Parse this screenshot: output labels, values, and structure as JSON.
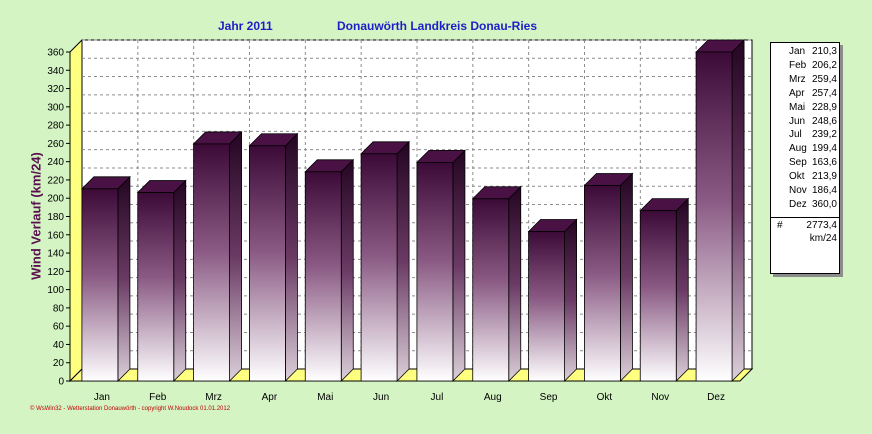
{
  "header": {
    "year_label": "Jahr  2011",
    "location": "Donauwörth Landkreis Donau-Ries"
  },
  "footer": {
    "copyright": "© WsWin32  -  Wetterstation Donauwörth  -  copyright W.Noudock  01.01.2012"
  },
  "colors": {
    "background": "#d4f4c4",
    "bar_dark": "#3c0a37",
    "bar_light": "#ffffff",
    "wall": "#ffffff",
    "floor": "#ffff80",
    "title": "#1e1ec8",
    "axis_label": "#5a0f4e"
  },
  "chart_data": {
    "type": "bar",
    "ylabel": "Wind Verlauf  (km/24)",
    "ylim": [
      0,
      360
    ],
    "yticks": [
      0,
      20,
      40,
      60,
      80,
      100,
      120,
      140,
      160,
      180,
      200,
      220,
      240,
      260,
      280,
      300,
      320,
      340,
      360
    ],
    "grid": true,
    "legend_position": "right",
    "categories": [
      "Jan",
      "Feb",
      "Mrz",
      "Apr",
      "Mai",
      "Jun",
      "Jul",
      "Aug",
      "Sep",
      "Okt",
      "Nov",
      "Dez"
    ],
    "values": [
      210.3,
      206.2,
      259.4,
      257.4,
      228.9,
      248.6,
      239.2,
      199.4,
      163.6,
      213.9,
      186.4,
      360.0
    ],
    "legend": {
      "rows": [
        {
          "month": "Jan",
          "value": "210,3"
        },
        {
          "month": "Feb",
          "value": "206,2"
        },
        {
          "month": "Mrz",
          "value": "259,4"
        },
        {
          "month": "Apr",
          "value": "257,4"
        },
        {
          "month": "Mai",
          "value": "228,9"
        },
        {
          "month": "Jun",
          "value": "248,6"
        },
        {
          "month": "Jul",
          "value": "239,2"
        },
        {
          "month": "Aug",
          "value": "199,4"
        },
        {
          "month": "Sep",
          "value": "163,6"
        },
        {
          "month": "Okt",
          "value": "213,9"
        },
        {
          "month": "Nov",
          "value": "186,4"
        },
        {
          "month": "Dez",
          "value": "360,0"
        }
      ],
      "total_symbol": "#",
      "total": "2773,4",
      "unit": "km/24"
    }
  }
}
